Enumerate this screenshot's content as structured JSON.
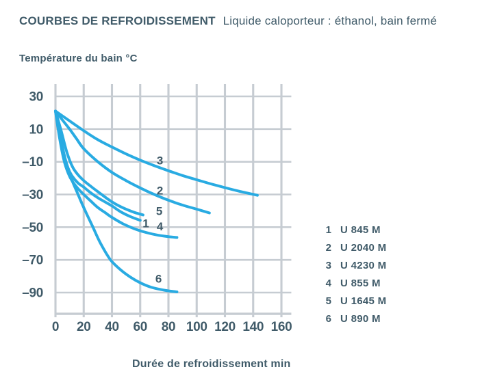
{
  "header": {
    "title_bold": "COURBES DE REFROIDISSEMENT",
    "title_regular": "Liquide caloporteur : éthanol, bain fermé"
  },
  "y_axis_title": "Température du bain °C",
  "x_axis_title": "Durée de refroidissement min",
  "colors": {
    "text": "#405b69",
    "curve": "#29abe2",
    "grid": "#c6ccd2",
    "background": "#ffffff"
  },
  "legend": {
    "items": [
      {
        "num": "1",
        "label": "U 845 M"
      },
      {
        "num": "2",
        "label": "U 2040 M"
      },
      {
        "num": "3",
        "label": "U 4230 M"
      },
      {
        "num": "4",
        "label": "U 855 M"
      },
      {
        "num": "5",
        "label": "U 1645 M"
      },
      {
        "num": "6",
        "label": "U 890 M"
      }
    ]
  },
  "chart_data": {
    "type": "line",
    "title": "COURBES DE REFROIDISSEMENT Liquide caloporteur : éthanol, bain fermé",
    "xlabel": "Durée de refroidissement min",
    "ylabel": "Température du bain °C",
    "xlim": [
      0,
      167
    ],
    "ylim": [
      -103,
      37.5
    ],
    "grid": true,
    "legend_position": "right",
    "x_ticks": [
      0,
      20,
      40,
      60,
      80,
      100,
      120,
      140,
      160
    ],
    "y_ticks": [
      30,
      10,
      -10,
      -30,
      -50,
      -70,
      -90
    ],
    "series": [
      {
        "curve_number": "1",
        "name": "U 845 M",
        "label_pos": {
          "x": 64,
          "y": -47.5
        },
        "points": [
          [
            0,
            21
          ],
          [
            3,
            8
          ],
          [
            6,
            -5
          ],
          [
            9,
            -14
          ],
          [
            12,
            -19
          ],
          [
            16,
            -23
          ],
          [
            20,
            -25.5
          ],
          [
            25,
            -29
          ],
          [
            30,
            -32
          ],
          [
            35,
            -34.5
          ],
          [
            40,
            -37
          ],
          [
            46,
            -40.5
          ],
          [
            53,
            -43.5
          ],
          [
            60,
            -45.8
          ]
        ]
      },
      {
        "curve_number": "2",
        "name": "U 2040 M",
        "label_pos": {
          "x": 74,
          "y": -27.5
        },
        "points": [
          [
            0,
            21
          ],
          [
            5,
            15.5
          ],
          [
            10,
            10
          ],
          [
            15,
            4
          ],
          [
            20,
            -2
          ],
          [
            30,
            -10
          ],
          [
            40,
            -16.5
          ],
          [
            50,
            -21.5
          ],
          [
            60,
            -26
          ],
          [
            70,
            -30
          ],
          [
            80,
            -33.5
          ],
          [
            90,
            -36.5
          ],
          [
            100,
            -39
          ],
          [
            109,
            -41.3
          ]
        ]
      },
      {
        "curve_number": "3",
        "name": "U 4230 M",
        "label_pos": {
          "x": 74,
          "y": -9
        },
        "points": [
          [
            0,
            21
          ],
          [
            10,
            15
          ],
          [
            20,
            9
          ],
          [
            30,
            3.5
          ],
          [
            40,
            -1
          ],
          [
            50,
            -5.2
          ],
          [
            60,
            -9
          ],
          [
            70,
            -12.4
          ],
          [
            80,
            -15.5
          ],
          [
            90,
            -18.4
          ],
          [
            100,
            -21
          ],
          [
            110,
            -23.5
          ],
          [
            120,
            -25.8
          ],
          [
            130,
            -28
          ],
          [
            143,
            -30.5
          ]
        ]
      },
      {
        "curve_number": "4",
        "name": "U 855 M",
        "label_pos": {
          "x": 74,
          "y": -49.5
        },
        "points": [
          [
            0,
            21
          ],
          [
            3,
            4
          ],
          [
            6,
            -9
          ],
          [
            9,
            -17
          ],
          [
            12,
            -22
          ],
          [
            16,
            -26.5
          ],
          [
            20,
            -30
          ],
          [
            25,
            -34
          ],
          [
            30,
            -38
          ],
          [
            35,
            -41
          ],
          [
            40,
            -44
          ],
          [
            48,
            -48
          ],
          [
            56,
            -51
          ],
          [
            64,
            -53.2
          ],
          [
            72,
            -54.8
          ],
          [
            80,
            -55.8
          ],
          [
            86,
            -56.3
          ]
        ]
      },
      {
        "curve_number": "5",
        "name": "U 1645 M",
        "label_pos": {
          "x": 73.5,
          "y": -40
        },
        "points": [
          [
            0,
            21
          ],
          [
            4,
            9
          ],
          [
            8,
            -4
          ],
          [
            12,
            -13
          ],
          [
            16,
            -18
          ],
          [
            20,
            -21.5
          ],
          [
            25,
            -25
          ],
          [
            30,
            -28.3
          ],
          [
            35,
            -31.5
          ],
          [
            40,
            -34.5
          ],
          [
            45,
            -37
          ],
          [
            50,
            -39
          ],
          [
            56,
            -41
          ],
          [
            62,
            -42.5
          ]
        ]
      },
      {
        "curve_number": "6",
        "name": "U 890 M",
        "label_pos": {
          "x": 73,
          "y": -81.5
        },
        "points": [
          [
            0,
            21
          ],
          [
            4,
            2
          ],
          [
            8,
            -13
          ],
          [
            12,
            -22
          ],
          [
            16,
            -30
          ],
          [
            20,
            -38
          ],
          [
            26,
            -49
          ],
          [
            32,
            -60
          ],
          [
            39,
            -70
          ],
          [
            46,
            -76
          ],
          [
            53,
            -80.5
          ],
          [
            60,
            -84
          ],
          [
            68,
            -86.8
          ],
          [
            78,
            -88.7
          ],
          [
            86,
            -89.6
          ]
        ]
      }
    ]
  }
}
